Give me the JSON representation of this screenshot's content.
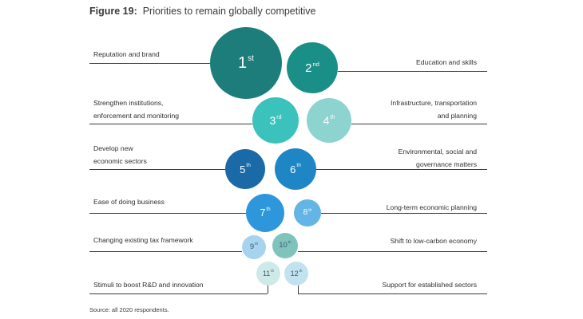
{
  "figure": {
    "number": "Figure 19:",
    "title": "Priorities to remain globally competitive"
  },
  "priorities": [
    {
      "rank": "1",
      "suffix": "st",
      "side": "left",
      "label": [
        "Reputation and brand"
      ],
      "color": "#1c7d7a"
    },
    {
      "rank": "2",
      "suffix": "nd",
      "side": "right",
      "label": [
        "Education and skills"
      ],
      "color": "#1a8f88"
    },
    {
      "rank": "3",
      "suffix": "rd",
      "side": "left",
      "label": [
        "Strengthen institutions,",
        "enforcement and monitoring"
      ],
      "color": "#3cc2bd"
    },
    {
      "rank": "4",
      "suffix": "th",
      "side": "right",
      "label": [
        "Infrastructure, transportation",
        "and planning"
      ],
      "color": "#8dd3d0"
    },
    {
      "rank": "5",
      "suffix": "th",
      "side": "left",
      "label": [
        "Develop new",
        "economic sectors"
      ],
      "color": "#1a6aa8"
    },
    {
      "rank": "6",
      "suffix": "th",
      "side": "right",
      "label": [
        "Environmental, social and",
        "governance matters"
      ],
      "color": "#1f86c6"
    },
    {
      "rank": "7",
      "suffix": "th",
      "side": "left",
      "label": [
        "Ease of doing business"
      ],
      "color": "#2e97db"
    },
    {
      "rank": "8",
      "suffix": "th",
      "side": "right",
      "label": [
        "Long-term economic planning"
      ],
      "color": "#62b5e4"
    },
    {
      "rank": "9",
      "suffix": "th",
      "side": "left",
      "label": [
        "Changing existing tax framework"
      ],
      "color": "#a6d4ef"
    },
    {
      "rank": "10",
      "suffix": "th",
      "side": "right",
      "label": [
        "Shift to low-carbon economy"
      ],
      "color": "#7fc3bd"
    },
    {
      "rank": "11",
      "suffix": "th",
      "side": "left",
      "label": [
        "Stimuli to boost R&D and innovation"
      ],
      "color": "#cde9e8"
    },
    {
      "rank": "12",
      "suffix": "th",
      "side": "right",
      "label": [
        "Support for established sectors"
      ],
      "color": "#c1e3ef"
    }
  ],
  "source": "Source: all 2020 respondents."
}
